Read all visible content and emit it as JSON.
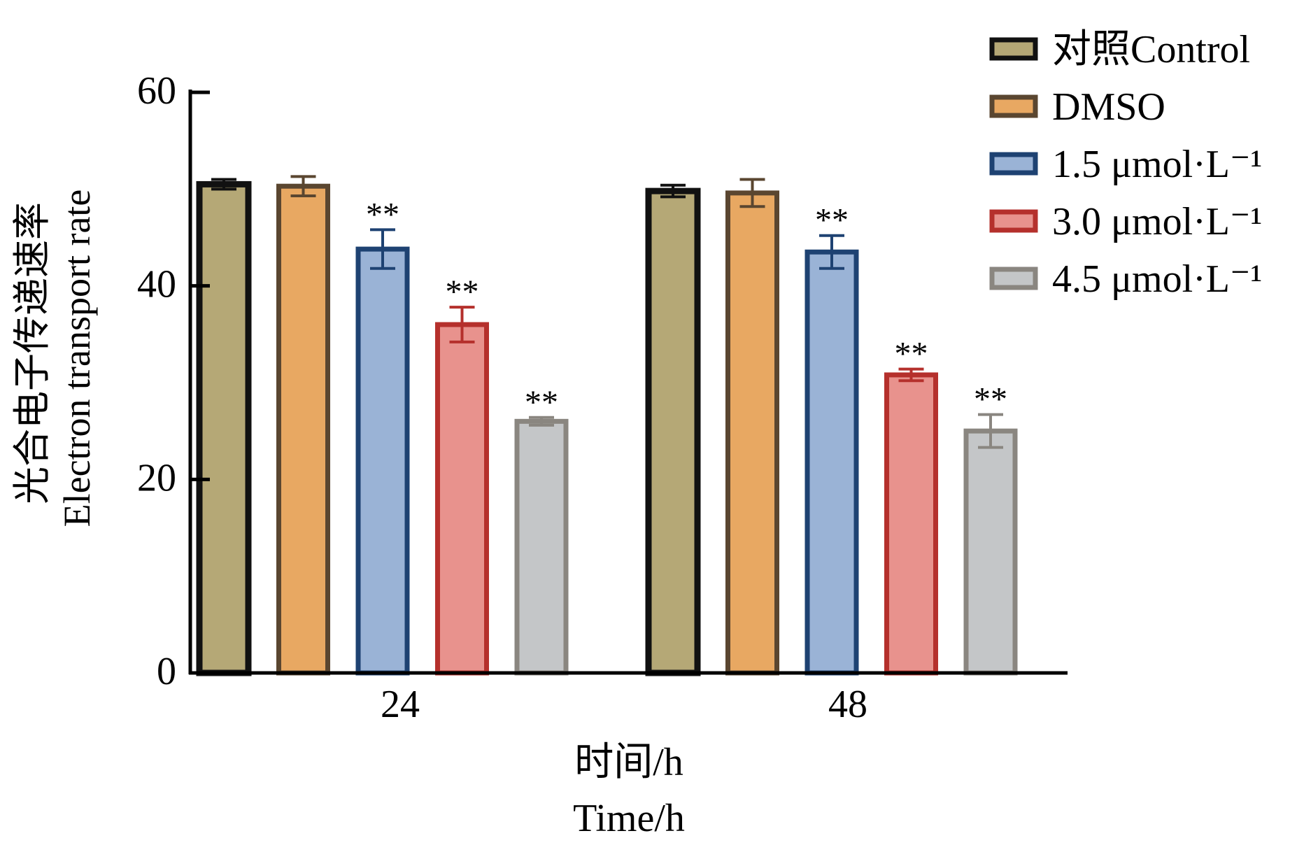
{
  "chart_data": {
    "type": "bar",
    "categories": [
      "24",
      "48"
    ],
    "series": [
      {
        "name": "对照Control",
        "values": [
          50.5,
          49.8
        ],
        "errors": [
          0.5,
          0.6
        ],
        "significance": [
          "",
          ""
        ],
        "fill": "#b5a876",
        "stroke": "#111111"
      },
      {
        "name": "DMSO",
        "values": [
          50.3,
          49.6
        ],
        "errors": [
          1.0,
          1.4
        ],
        "significance": [
          "",
          ""
        ],
        "fill": "#e8a862",
        "stroke": "#5a4630"
      },
      {
        "name": "1.5 μmol·L⁻¹",
        "values": [
          43.8,
          43.5
        ],
        "errors": [
          2.0,
          1.7
        ],
        "significance": [
          "**",
          "**"
        ],
        "fill": "#9ab3d6",
        "stroke": "#1e4272"
      },
      {
        "name": "3.0 μmol·L⁻¹",
        "values": [
          36.0,
          30.8
        ],
        "errors": [
          1.8,
          0.6
        ],
        "significance": [
          "**",
          "**"
        ],
        "fill": "#e8928d",
        "stroke": "#b5302c"
      },
      {
        "name": "4.5 μmol·L⁻¹",
        "values": [
          26.0,
          25.0
        ],
        "errors": [
          0.4,
          1.7
        ],
        "significance": [
          "**",
          "**"
        ],
        "fill": "#c4c6c8",
        "stroke": "#8a8680"
      }
    ],
    "yticks": [
      "0",
      "20",
      "40",
      "60"
    ],
    "ylim": [
      0,
      60
    ],
    "ylabel": [
      "光合电子传递速率",
      "Electron transport rate"
    ],
    "xlabel": [
      "时间/h",
      "Time/h"
    ],
    "legend_position": "top-right",
    "grid": false
  }
}
